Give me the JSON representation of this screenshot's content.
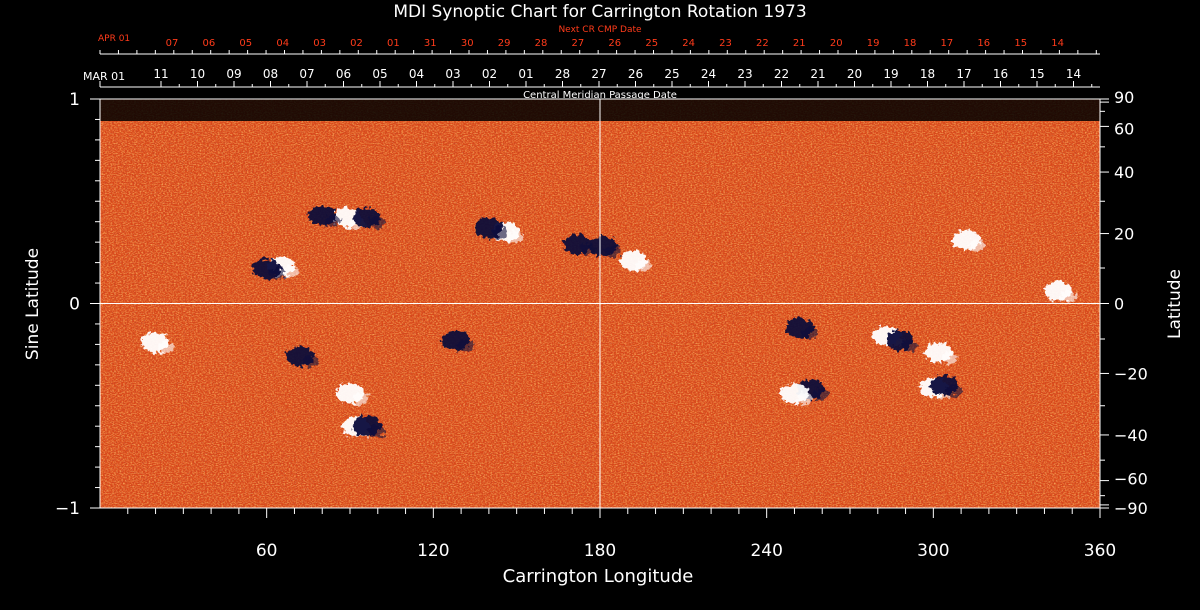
{
  "chart_data": {
    "type": "heatmap",
    "title": "MDI Synoptic Chart for Carrington Rotation 1973",
    "xlabel": "Carrington Longitude",
    "ylabel_left": "Sine Latitude",
    "ylabel_right": "Latitude",
    "xlim": [
      0,
      360
    ],
    "x_ticks": [
      60,
      120,
      180,
      240,
      300,
      360
    ],
    "ylim_sine": [
      -1,
      1
    ],
    "y_ticks_left": [
      {
        "value": 1,
        "label": "1"
      },
      {
        "value": 0,
        "label": "0"
      },
      {
        "value": -1,
        "label": "−1"
      }
    ],
    "y_ticks_right": [
      {
        "deg": 90,
        "label": "90"
      },
      {
        "deg": 60,
        "label": "60"
      },
      {
        "deg": 40,
        "label": "40"
      },
      {
        "deg": 20,
        "label": "20"
      },
      {
        "deg": 0,
        "label": "0"
      },
      {
        "deg": -20,
        "label": "−20"
      },
      {
        "deg": -40,
        "label": "−40"
      },
      {
        "deg": -60,
        "label": "−60"
      },
      {
        "deg": -90,
        "label": "−90"
      }
    ],
    "cmp_axis": {
      "label": "Central Meridian Passage Date",
      "start_label": "MAR 01",
      "days": [
        "11",
        "10",
        "09",
        "08",
        "07",
        "06",
        "05",
        "04",
        "03",
        "02",
        "01",
        "28",
        "27",
        "26",
        "25",
        "24",
        "23",
        "22",
        "21",
        "20",
        "19",
        "18",
        "17",
        "16",
        "15",
        "14"
      ]
    },
    "next_cmp_axis": {
      "label": "Next CR CMP Date",
      "start_label": "APR 01",
      "days": [
        "07",
        "06",
        "05",
        "04",
        "03",
        "02",
        "01",
        "31",
        "30",
        "29",
        "28",
        "27",
        "26",
        "25",
        "24",
        "23",
        "22",
        "21",
        "20",
        "19",
        "18",
        "17",
        "16",
        "15",
        "14"
      ]
    },
    "colors": {
      "background_field": "#d9481a",
      "positive_polarity": "#ffffff",
      "negative_polarity": "#0b0b3a",
      "next_cmp_text": "#ff3b1a",
      "axes": "#ffffff"
    },
    "active_regions": [
      {
        "lon": 65,
        "sinlat": 0.18,
        "polarity": "positive"
      },
      {
        "lon": 60,
        "sinlat": 0.17,
        "polarity": "negative"
      },
      {
        "lon": 89,
        "sinlat": 0.42,
        "polarity": "positive"
      },
      {
        "lon": 80,
        "sinlat": 0.43,
        "polarity": "negative"
      },
      {
        "lon": 96,
        "sinlat": 0.42,
        "polarity": "negative"
      },
      {
        "lon": 146,
        "sinlat": 0.35,
        "polarity": "positive"
      },
      {
        "lon": 140,
        "sinlat": 0.37,
        "polarity": "negative"
      },
      {
        "lon": 172,
        "sinlat": 0.29,
        "polarity": "negative"
      },
      {
        "lon": 181,
        "sinlat": 0.28,
        "polarity": "negative"
      },
      {
        "lon": 192,
        "sinlat": 0.21,
        "polarity": "positive"
      },
      {
        "lon": 312,
        "sinlat": 0.31,
        "polarity": "positive"
      },
      {
        "lon": 345,
        "sinlat": 0.06,
        "polarity": "positive"
      },
      {
        "lon": 92,
        "sinlat": -0.6,
        "polarity": "positive"
      },
      {
        "lon": 96,
        "sinlat": -0.6,
        "polarity": "negative"
      },
      {
        "lon": 90,
        "sinlat": -0.44,
        "polarity": "positive"
      },
      {
        "lon": 72,
        "sinlat": -0.26,
        "polarity": "negative"
      },
      {
        "lon": 20,
        "sinlat": -0.19,
        "polarity": "positive"
      },
      {
        "lon": 128,
        "sinlat": -0.18,
        "polarity": "negative"
      },
      {
        "lon": 252,
        "sinlat": -0.12,
        "polarity": "negative"
      },
      {
        "lon": 283,
        "sinlat": -0.16,
        "polarity": "positive"
      },
      {
        "lon": 288,
        "sinlat": -0.18,
        "polarity": "negative"
      },
      {
        "lon": 300,
        "sinlat": -0.41,
        "polarity": "positive"
      },
      {
        "lon": 304,
        "sinlat": -0.4,
        "polarity": "negative"
      },
      {
        "lon": 256,
        "sinlat": -0.42,
        "polarity": "negative"
      },
      {
        "lon": 250,
        "sinlat": -0.44,
        "polarity": "positive"
      },
      {
        "lon": 302,
        "sinlat": -0.24,
        "polarity": "positive"
      }
    ]
  }
}
